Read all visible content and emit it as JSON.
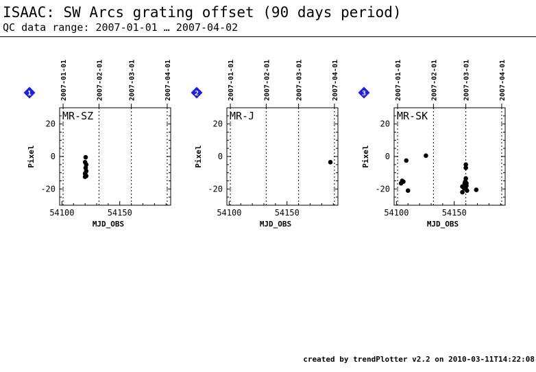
{
  "header": {
    "title": "ISAAC: SW Arcs grating offset (90 days period)",
    "subtitle": "QC data range: 2007-01-01 … 2007-04-02"
  },
  "footer": {
    "text": "created by trendPlotter v2.2 on 2010-03-11T14:22:08"
  },
  "colors": {
    "marker_badge": "#1a1aff",
    "points": "#000000"
  },
  "chart_data": [
    {
      "type": "scatter",
      "panel_number": "1",
      "label": "MR-SZ",
      "xlabel": "MJD_OBS",
      "ylabel": "Pixel",
      "xlim": [
        54098,
        54194
      ],
      "ylim": [
        -30,
        30
      ],
      "x_ticks": [
        54100,
        54150
      ],
      "y_ticks": [
        -20,
        0,
        20
      ],
      "date_ticks": [
        {
          "label": "2007-01-01",
          "mjd": 54101
        },
        {
          "label": "2007-02-01",
          "mjd": 54132
        },
        {
          "label": "2007-03-01",
          "mjd": 54160
        },
        {
          "label": "2007-04-01",
          "mjd": 54191
        }
      ],
      "points": [
        {
          "x": 54120.5,
          "y": -0.5
        },
        {
          "x": 54120.0,
          "y": -3.5
        },
        {
          "x": 54121.0,
          "y": -5.0
        },
        {
          "x": 54120.5,
          "y": -7.0
        },
        {
          "x": 54121.0,
          "y": -9.0
        },
        {
          "x": 54120.0,
          "y": -10.5
        },
        {
          "x": 54120.5,
          "y": -11.5
        },
        {
          "x": 54121.0,
          "y": -12.0
        },
        {
          "x": 54120.0,
          "y": -12.5
        }
      ]
    },
    {
      "type": "scatter",
      "panel_number": "2",
      "label": "MR-J",
      "xlabel": "MJD_OBS",
      "ylabel": "Pixel",
      "xlim": [
        54098,
        54194
      ],
      "ylim": [
        -30,
        30
      ],
      "x_ticks": [
        54100,
        54150
      ],
      "y_ticks": [
        -20,
        0,
        20
      ],
      "date_ticks": [
        {
          "label": "2007-01-01",
          "mjd": 54101
        },
        {
          "label": "2007-02-01",
          "mjd": 54132
        },
        {
          "label": "2007-03-01",
          "mjd": 54160
        },
        {
          "label": "2007-04-01",
          "mjd": 54191
        }
      ],
      "points": [
        {
          "x": 54187.5,
          "y": -3.5
        }
      ]
    },
    {
      "type": "scatter",
      "panel_number": "3",
      "label": "MR-SK",
      "xlabel": "MJD_OBS",
      "ylabel": "Pixel",
      "xlim": [
        54098,
        54194
      ],
      "ylim": [
        -30,
        30
      ],
      "x_ticks": [
        54100,
        54150
      ],
      "y_ticks": [
        -20,
        0,
        20
      ],
      "date_ticks": [
        {
          "label": "2007-01-01",
          "mjd": 54101
        },
        {
          "label": "2007-02-01",
          "mjd": 54132
        },
        {
          "label": "2007-03-01",
          "mjd": 54160
        },
        {
          "label": "2007-04-01",
          "mjd": 54191
        }
      ],
      "points": [
        {
          "x": 54104.0,
          "y": -16.5
        },
        {
          "x": 54105.0,
          "y": -15.0
        },
        {
          "x": 54106.0,
          "y": -15.5
        },
        {
          "x": 54108.5,
          "y": -2.5
        },
        {
          "x": 54110.0,
          "y": -21.0
        },
        {
          "x": 54125.5,
          "y": 0.5
        },
        {
          "x": 54157.0,
          "y": -22.0
        },
        {
          "x": 54157.0,
          "y": -18.5
        },
        {
          "x": 54158.5,
          "y": -19.5
        },
        {
          "x": 54159.0,
          "y": -16.5
        },
        {
          "x": 54159.5,
          "y": -15.5
        },
        {
          "x": 54160.0,
          "y": -5.0
        },
        {
          "x": 54160.0,
          "y": -7.0
        },
        {
          "x": 54160.0,
          "y": -13.5
        },
        {
          "x": 54160.5,
          "y": -16.5
        },
        {
          "x": 54160.5,
          "y": -18.0
        },
        {
          "x": 54160.0,
          "y": -20.0
        },
        {
          "x": 54161.0,
          "y": -21.0
        },
        {
          "x": 54169.0,
          "y": -20.5
        }
      ]
    }
  ]
}
